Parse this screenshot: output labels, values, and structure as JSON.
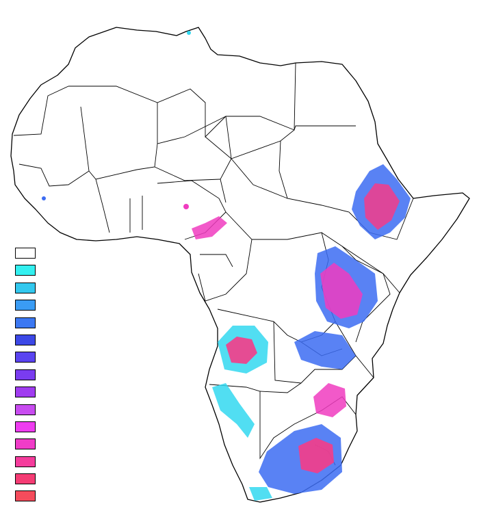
{
  "map": {
    "region": "Africa",
    "background": "#ffffff",
    "outline_color": "#000000"
  },
  "legend": {
    "swatches": [
      "#ffffff",
      "#33f0f0",
      "#33c8ee",
      "#3a9cf4",
      "#3c78f2",
      "#3c48e6",
      "#5a44f0",
      "#7a3cf0",
      "#a03cf0",
      "#c84cf0",
      "#ee3cf0",
      "#f03cc8",
      "#f53c9c",
      "#f53c74",
      "#f54c5c"
    ]
  },
  "hotspot_colors": {
    "cyan": "#33d8f0",
    "blue": "#3c6cf2",
    "magenta": "#f03cc0",
    "pink": "#f53c88"
  }
}
